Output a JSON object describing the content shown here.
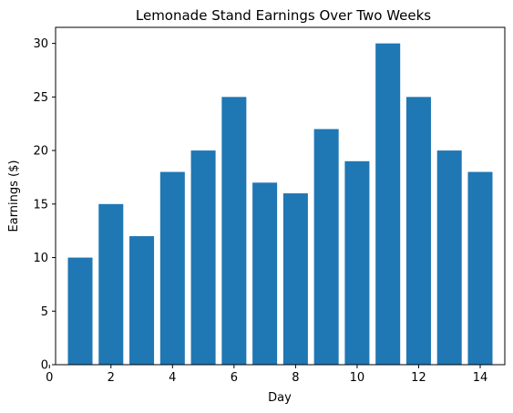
{
  "chart_data": {
    "type": "bar",
    "title": "Lemonade Stand Earnings Over Two Weeks",
    "xlabel": "Day",
    "ylabel": "Earnings ($)",
    "x": [
      1,
      2,
      3,
      4,
      5,
      6,
      7,
      8,
      9,
      10,
      11,
      12,
      13,
      14
    ],
    "values": [
      10,
      15,
      12,
      18,
      20,
      25,
      17,
      16,
      22,
      19,
      30,
      25,
      20,
      18
    ],
    "xlim": [
      0.2,
      14.8
    ],
    "ylim": [
      0,
      31.5
    ],
    "xticks": [
      0,
      2,
      4,
      6,
      8,
      10,
      12,
      14
    ],
    "yticks": [
      0,
      5,
      10,
      15,
      20,
      25,
      30
    ],
    "bar_color": "#1f77b4",
    "grid": false,
    "legend": "none"
  }
}
